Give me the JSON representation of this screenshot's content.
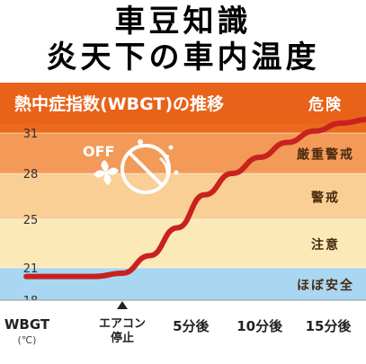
{
  "page": {
    "title_lines": [
      "車豆知識",
      "炎天下の車内温度"
    ]
  },
  "chart_data": {
    "type": "line",
    "title": "熱中症指数(WBGT)の推移",
    "ylabel": "WBGT",
    "ylabel_unit": "(℃)",
    "y_ticks": [
      18,
      21,
      25,
      28,
      31
    ],
    "ylim": [
      18,
      33
    ],
    "x_ticks": [
      {
        "x": 0,
        "label": "エアコン\n停止"
      },
      {
        "x": 5,
        "label": "5分後"
      },
      {
        "x": 10,
        "label": "10分後"
      },
      {
        "x": 15,
        "label": "15分後"
      }
    ],
    "xlim": [
      -7,
      18
    ],
    "bands": [
      {
        "label": "ほぼ安全",
        "from": 18,
        "to": 21,
        "color": "#a9d6f0"
      },
      {
        "label": "注意",
        "from": 21,
        "to": 25,
        "color": "#fbe9b8"
      },
      {
        "label": "警戒",
        "from": 25,
        "to": 28,
        "color": "#f9cf95"
      },
      {
        "label": "厳重警戒",
        "from": 28,
        "to": 31,
        "color": "#f39a58"
      },
      {
        "label": "危険",
        "from": 31,
        "to": 33,
        "color": "#ea6b1e"
      }
    ],
    "series": [
      {
        "color": "#c8221e",
        "points": [
          {
            "x": -7,
            "y": 20.2
          },
          {
            "x": -2,
            "y": 20.2
          },
          {
            "x": 0,
            "y": 20.5
          },
          {
            "x": 2,
            "y": 22.0
          },
          {
            "x": 4,
            "y": 24.3
          },
          {
            "x": 6,
            "y": 26.6
          },
          {
            "x": 8,
            "y": 28.0
          },
          {
            "x": 10,
            "y": 29.2
          },
          {
            "x": 12,
            "y": 30.3
          },
          {
            "x": 14,
            "y": 31.2
          },
          {
            "x": 16,
            "y": 32.0
          },
          {
            "x": 18,
            "y": 32.4
          }
        ]
      }
    ],
    "annotation_icon": "air-conditioner-off-icon",
    "annotation_text": "OFF",
    "marker": {
      "x": 0,
      "shape": "triangle-up"
    },
    "grid": "horizontal"
  }
}
